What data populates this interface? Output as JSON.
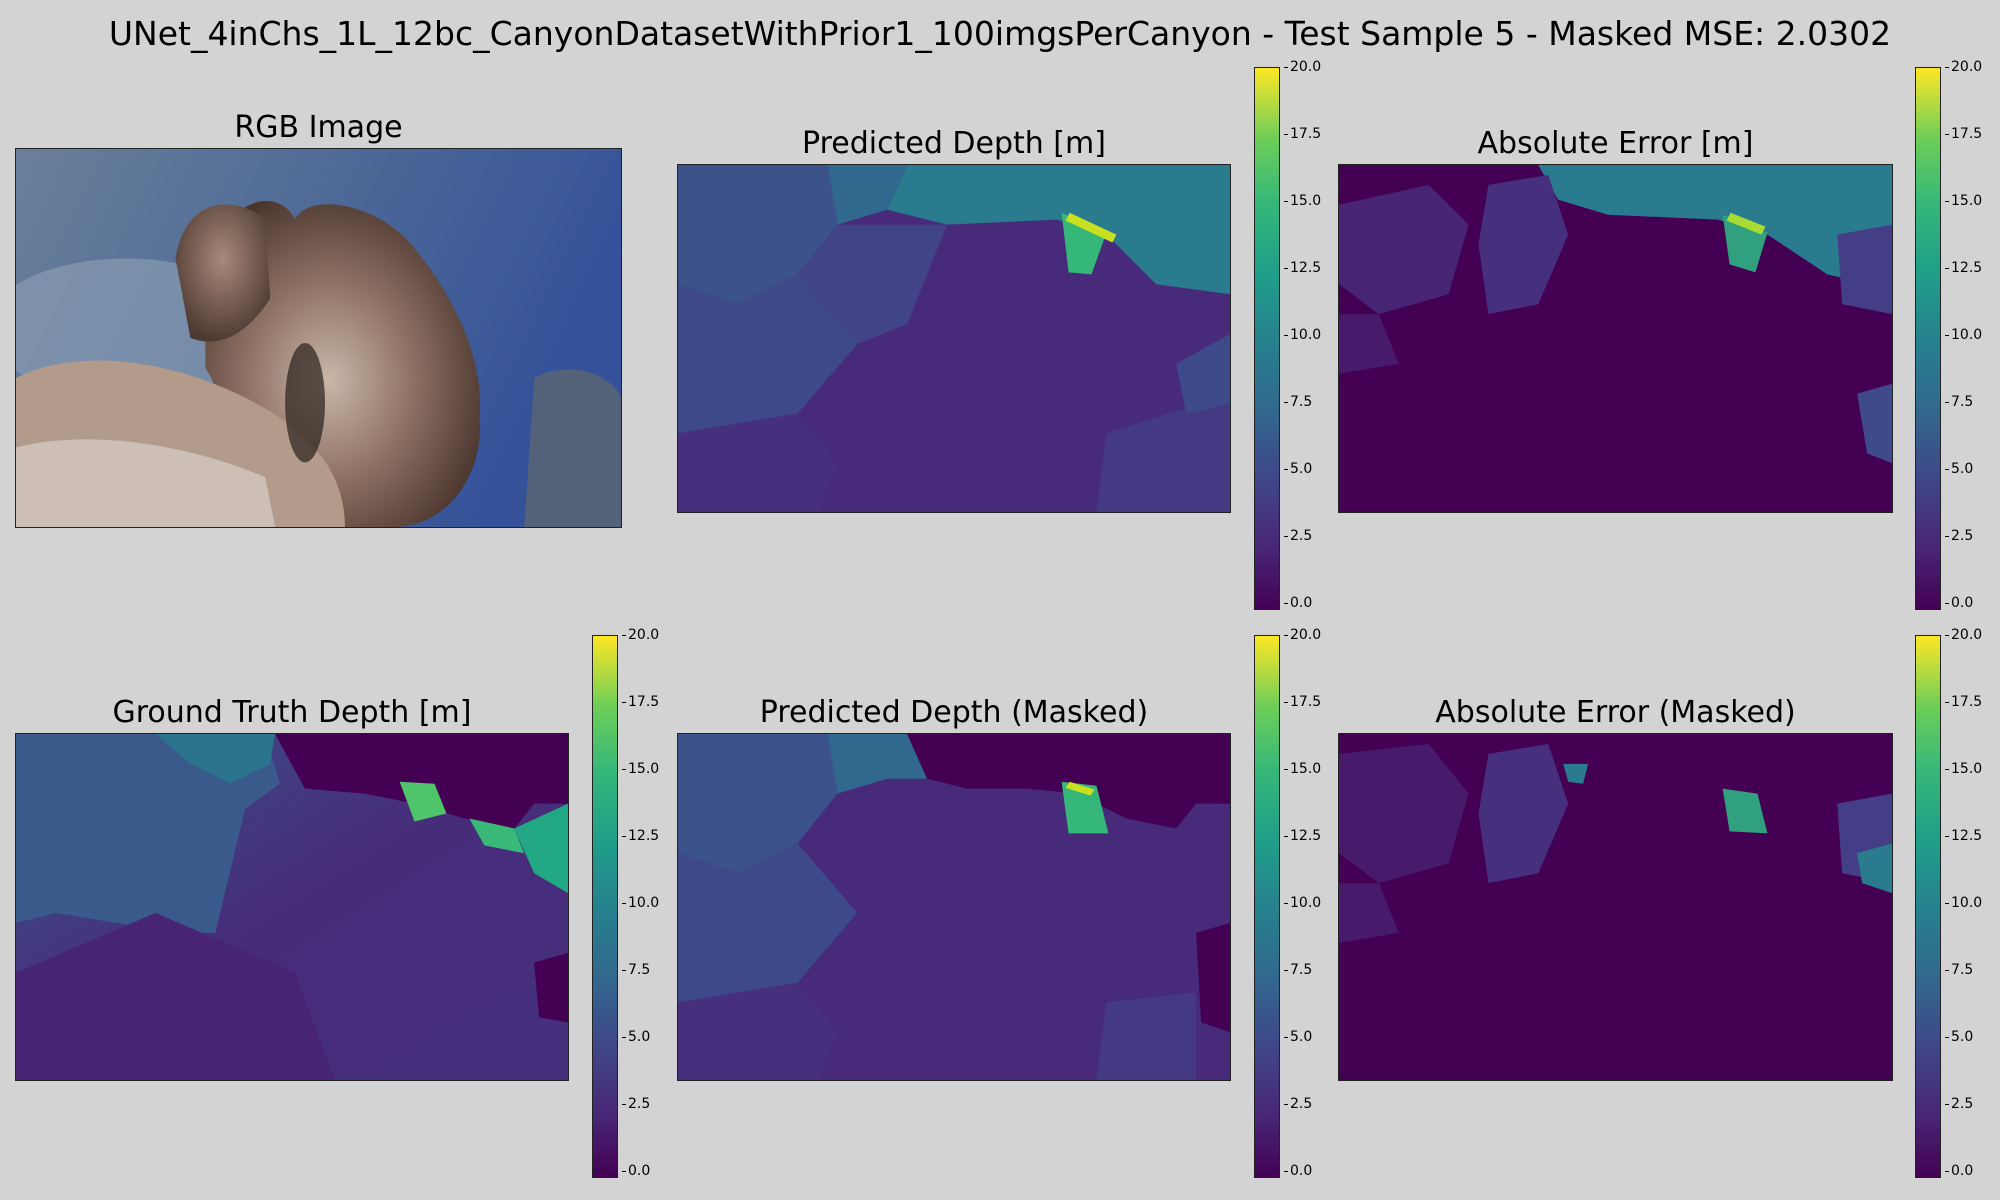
{
  "suptitle": "UNet_4inChs_1L_12bc_CanyonDatasetWithPrior1_100imgsPerCanyon - Test Sample 5 - Masked MSE: 2.0302",
  "panels": {
    "rgb": {
      "title": "RGB Image"
    },
    "pred_depth": {
      "title": "Predicted Depth [m]"
    },
    "abs_error": {
      "title": "Absolute Error [m]"
    },
    "gt_depth": {
      "title": "Ground Truth Depth [m]"
    },
    "pred_depth_masked": {
      "title": "Predicted Depth (Masked)"
    },
    "abs_error_masked": {
      "title": "Absolute Error (Masked)"
    }
  },
  "colorbar": {
    "colormap": "viridis",
    "min": 0.0,
    "max": 20.0,
    "ticks": [
      "20.0",
      "17.5",
      "15.0",
      "12.5",
      "10.0",
      "7.5",
      "5.0",
      "2.5",
      "0.0"
    ]
  },
  "colors": {
    "background": "#d3d3d3",
    "viridis_low": "#440154",
    "viridis_mid": "#21918c",
    "viridis_high": "#fde725"
  }
}
